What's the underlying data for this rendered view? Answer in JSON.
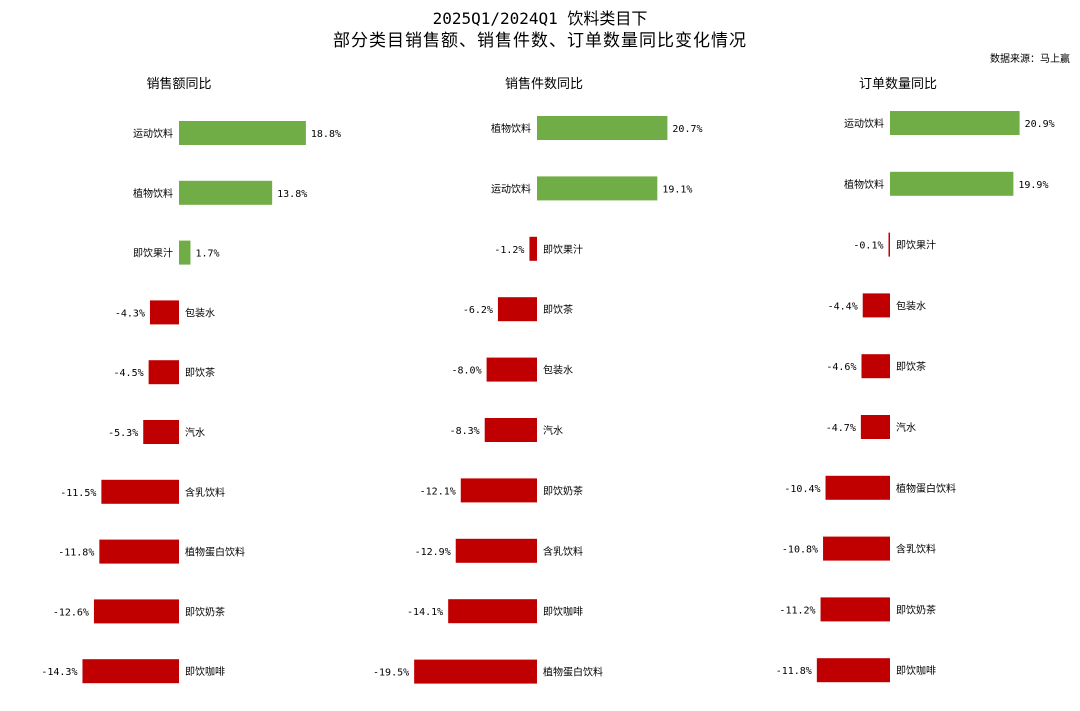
{
  "title": "2025Q1/2024Q1 饮料类目下",
  "subtitle": "部分类目销售额、销售件数、订单数量同比变化情况",
  "source": "数据来源：马上赢",
  "colors": {
    "positive": "#70ad47",
    "negative": "#c00000"
  },
  "chart_data": [
    {
      "type": "bar",
      "orientation": "horizontal",
      "title": "销售额同比",
      "unit": "%",
      "categories": [
        "运动饮料",
        "植物饮料",
        "即饮果汁",
        "包装水",
        "即饮茶",
        "汽水",
        "含乳饮料",
        "植物蛋白饮料",
        "即饮奶茶",
        "即饮咖啡"
      ],
      "values": [
        18.8,
        13.8,
        1.7,
        -4.3,
        -4.5,
        -5.3,
        -11.5,
        -11.8,
        -12.6,
        -14.3
      ],
      "value_labels": [
        "18.8%",
        "13.8%",
        "1.7%",
        "-4.3%",
        "-4.5%",
        "-5.3%",
        "-11.5%",
        "-11.8%",
        "-12.6%",
        "-14.3%"
      ]
    },
    {
      "type": "bar",
      "orientation": "horizontal",
      "title": "销售件数同比",
      "unit": "%",
      "categories": [
        "植物饮料",
        "运动饮料",
        "即饮果汁",
        "即饮茶",
        "包装水",
        "汽水",
        "即饮奶茶",
        "含乳饮料",
        "即饮咖啡",
        "植物蛋白饮料"
      ],
      "values": [
        20.7,
        19.1,
        -1.2,
        -6.2,
        -8.0,
        -8.3,
        -12.1,
        -12.9,
        -14.1,
        -19.5
      ],
      "value_labels": [
        "20.7%",
        "19.1%",
        "-1.2%",
        "-6.2%",
        "-8.0%",
        "-8.3%",
        "-12.1%",
        "-12.9%",
        "-14.1%",
        "-19.5%"
      ]
    },
    {
      "type": "bar",
      "orientation": "horizontal",
      "title": "订单数量同比",
      "unit": "%",
      "categories": [
        "运动饮料",
        "植物饮料",
        "即饮果汁",
        "包装水",
        "即饮茶",
        "汽水",
        "植物蛋白饮料",
        "含乳饮料",
        "即饮奶茶",
        "即饮咖啡"
      ],
      "values": [
        20.9,
        19.9,
        -0.1,
        -4.4,
        -4.6,
        -4.7,
        -10.4,
        -10.8,
        -11.2,
        -11.8
      ],
      "value_labels": [
        "20.9%",
        "19.9%",
        "-0.1%",
        "-4.4%",
        "-4.6%",
        "-4.7%",
        "-10.4%",
        "-10.8%",
        "-11.2%",
        "-11.8%"
      ]
    }
  ]
}
